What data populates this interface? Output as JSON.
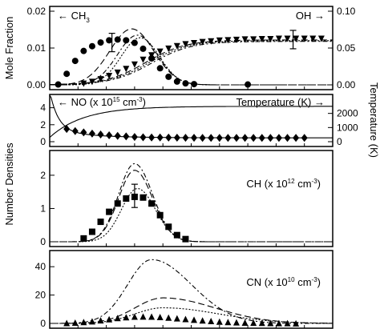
{
  "chart_data": [
    {
      "type": "scatter",
      "panel": "top",
      "ylabel": "Mole Fraction",
      "ylabel_right": "",
      "y_ticks": [
        "0.00",
        "0.01",
        "0.02"
      ],
      "y_ticks_right": [
        "0.00",
        "0.05",
        "0.10"
      ],
      "ylim": [
        0,
        0.02
      ],
      "ylim_right": [
        0,
        0.1
      ],
      "annotations": {
        "left": "← CH",
        "left_sub": "3",
        "right": "OH →"
      },
      "series": [
        {
          "name": "CH3",
          "marker": "circle",
          "x": [
            0.03,
            0.06,
            0.09,
            0.12,
            0.15,
            0.18,
            0.21,
            0.24,
            0.27,
            0.3,
            0.33,
            0.36,
            0.39,
            0.42,
            0.45,
            0.48,
            0.51,
            0.7
          ],
          "y": [
            0.0001,
            0.003,
            0.0065,
            0.0092,
            0.0105,
            0.0115,
            0.0121,
            0.0123,
            0.0121,
            0.0114,
            0.0098,
            0.0072,
            0.0045,
            0.0022,
            0.0009,
            0.0004,
            0.0002,
            0.0001
          ]
        },
        {
          "name": "OH",
          "marker": "triangle-down",
          "x": [
            0.12,
            0.15,
            0.18,
            0.21,
            0.24,
            0.27,
            0.3,
            0.33,
            0.36,
            0.39,
            0.42,
            0.45,
            0.48,
            0.51,
            0.54,
            0.57,
            0.6,
            0.63,
            0.66,
            0.69,
            0.72,
            0.75,
            0.78,
            0.81,
            0.84,
            0.87,
            0.9,
            0.93,
            0.96
          ],
          "y": [
            0.0003,
            0.0008,
            0.0015,
            0.0024,
            0.0033,
            0.0043,
            0.0055,
            0.0068,
            0.008,
            0.009,
            0.0098,
            0.0105,
            0.011,
            0.0113,
            0.0116,
            0.0118,
            0.012,
            0.0121,
            0.0122,
            0.0123,
            0.0123,
            0.0124,
            0.0124,
            0.0125,
            0.0125,
            0.0125,
            0.0125,
            0.0125,
            0.0125
          ]
        }
      ],
      "error_bars": [
        {
          "x": 0.22,
          "y": 0.0115,
          "err": 0.0025
        },
        {
          "x": 0.86,
          "y": 0.0123,
          "err": 0.0025
        }
      ]
    },
    {
      "type": "scatter",
      "panel": "no-temperature",
      "ylabel": "Number Densities",
      "ylabel_right": "Temperature (K)",
      "y_ticks": [
        "0",
        "2",
        "4"
      ],
      "y_ticks_right": [
        "0",
        "1000",
        "2000"
      ],
      "ylim": [
        0,
        5
      ],
      "ylim_right": [
        0,
        3000
      ],
      "annotations": {
        "left_prefix": "← NO (x 10",
        "left_exp": "15",
        "left_unit": "cm",
        "left_unit_exp": "-3",
        "left_suffix": ")",
        "right": "Temperature (K) →"
      },
      "series": [
        {
          "name": "NO",
          "marker": "diamond",
          "x": [
            0.06,
            0.09,
            0.12,
            0.15,
            0.18,
            0.21,
            0.24,
            0.27,
            0.3,
            0.33,
            0.36,
            0.39,
            0.42,
            0.45,
            0.48,
            0.51,
            0.54,
            0.57,
            0.6,
            0.63,
            0.66,
            0.69,
            0.72,
            0.75,
            0.78,
            0.81,
            0.84,
            0.87,
            0.9
          ],
          "y": [
            1.5,
            1.25,
            1.1,
            0.95,
            0.85,
            0.75,
            0.68,
            0.62,
            0.56,
            0.52,
            0.5,
            0.49,
            0.48,
            0.47,
            0.46,
            0.46,
            0.45,
            0.45,
            0.45,
            0.45,
            0.45,
            0.45,
            0.45,
            0.45,
            0.45,
            0.45,
            0.45,
            0.45,
            0.45
          ]
        }
      ]
    },
    {
      "type": "scatter",
      "panel": "ch",
      "y_ticks": [
        "0",
        "1",
        "2"
      ],
      "ylim": [
        0,
        2.6
      ],
      "annotations": {
        "prefix": "CH (x 10",
        "exp": "12",
        "unit": "cm",
        "unit_exp": "-3",
        "suffix": ")"
      },
      "series": [
        {
          "name": "CH",
          "marker": "square",
          "x": [
            0.12,
            0.15,
            0.18,
            0.21,
            0.24,
            0.27,
            0.3,
            0.33,
            0.36,
            0.39,
            0.42,
            0.45,
            0.48
          ],
          "y": [
            0.1,
            0.3,
            0.6,
            0.9,
            1.15,
            1.3,
            1.35,
            1.33,
            1.15,
            0.8,
            0.45,
            0.2,
            0.08
          ]
        }
      ],
      "error_bars": [
        {
          "x": 0.3,
          "y": 1.38,
          "err": 0.35
        }
      ]
    },
    {
      "type": "scatter",
      "panel": "cn",
      "y_ticks": [
        "0",
        "20",
        "40"
      ],
      "ylim": [
        0,
        48
      ],
      "annotations": {
        "prefix": "CN (x 10",
        "exp": "10",
        "unit": "cm",
        "unit_exp": "-3",
        "suffix": ")"
      },
      "series": [
        {
          "name": "CN",
          "marker": "triangle-up",
          "x": [
            0.06,
            0.09,
            0.12,
            0.15,
            0.18,
            0.21,
            0.24,
            0.27,
            0.3,
            0.33,
            0.36,
            0.39,
            0.42,
            0.45,
            0.48,
            0.51,
            0.54,
            0.57,
            0.6,
            0.63,
            0.66,
            0.69,
            0.72,
            0.75,
            0.78,
            0.81,
            0.84,
            0.87
          ],
          "y": [
            0.3,
            0.6,
            1.0,
            1.5,
            2.2,
            3.0,
            3.8,
            4.4,
            4.8,
            4.9,
            4.8,
            4.5,
            4.1,
            3.6,
            3.1,
            2.6,
            2.1,
            1.7,
            1.3,
            1.0,
            0.8,
            0.6,
            0.5,
            0.4,
            0.3,
            0.2,
            0.2,
            0.1
          ]
        }
      ]
    }
  ]
}
